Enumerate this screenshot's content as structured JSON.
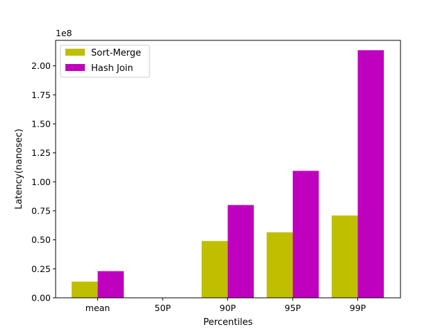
{
  "chart_data": {
    "type": "bar",
    "categories": [
      "mean",
      "50P",
      "90P",
      "95P",
      "99P"
    ],
    "series": [
      {
        "name": "Sort-Merge",
        "color": "#bfbf00",
        "values": [
          14000000,
          0,
          49000000,
          56500000,
          71000000
        ]
      },
      {
        "name": "Hash Join",
        "color": "#bf00bf",
        "values": [
          23000000,
          0,
          80000000,
          109500000,
          213500000
        ]
      }
    ],
    "title": "",
    "xlabel": "Percentiles",
    "ylabel": "Latency(nanosec)",
    "ylim": [
      0,
      222000000
    ],
    "y_ticks": [
      0,
      25000000,
      50000000,
      75000000,
      100000000,
      125000000,
      150000000,
      175000000,
      200000000
    ],
    "y_tick_labels": [
      "0.00",
      "0.25",
      "0.50",
      "0.75",
      "1.00",
      "1.25",
      "1.50",
      "1.75",
      "2.00"
    ],
    "y_scale_label": "1e8",
    "grid": false,
    "legend_position": "top-left"
  }
}
